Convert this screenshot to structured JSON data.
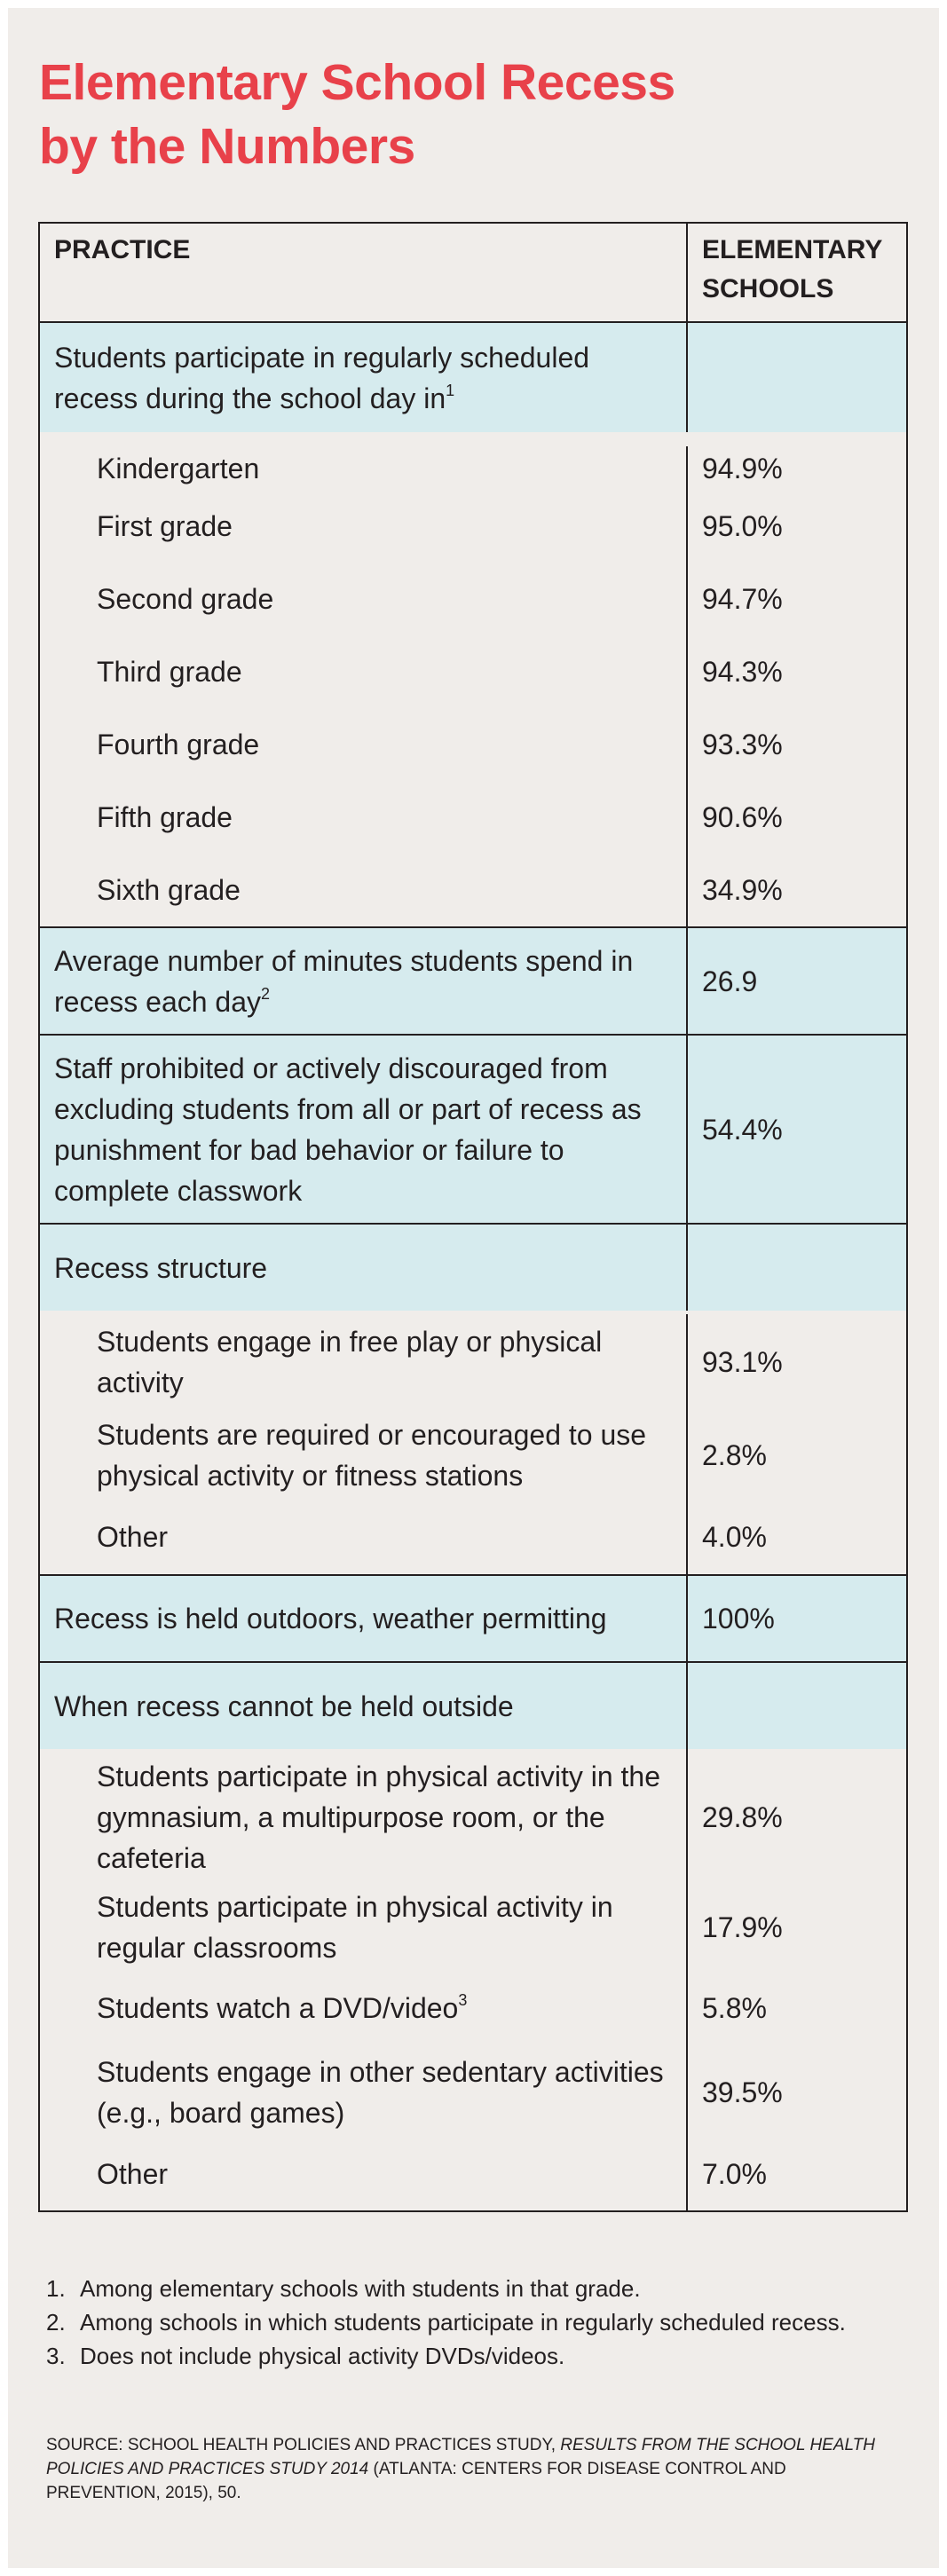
{
  "title": {
    "line1": "Elementary School Recess",
    "line2": "by the Numbers"
  },
  "table": {
    "header": {
      "practice": "PRACTICE",
      "schools_line1": "ELEMENTARY",
      "schools_line2": "SCHOOLS"
    },
    "sections": [
      {
        "label": "Students participate in regularly scheduled recess during the school day in",
        "note": "1",
        "value": "",
        "rows": [
          {
            "label": "Kindergarten",
            "value": "94.9%"
          },
          {
            "label": "First grade",
            "value": "95.0%"
          },
          {
            "label": "Second grade",
            "value": "94.7%"
          },
          {
            "label": "Third grade",
            "value": "94.3%"
          },
          {
            "label": "Fourth grade",
            "value": "93.3%"
          },
          {
            "label": "Fifth grade",
            "value": "90.6%"
          },
          {
            "label": "Sixth grade",
            "value": "34.9%"
          }
        ]
      },
      {
        "label": "Average number of minutes students spend in recess each day",
        "note": "2",
        "value": "26.9",
        "rows": []
      },
      {
        "label": "Staff prohibited or actively discouraged from excluding students from all or part of recess as punishment for bad behavior or failure to complete classwork",
        "note": "",
        "value": "54.4%",
        "rows": []
      },
      {
        "label": "Recess structure",
        "note": "",
        "value": "",
        "rows": [
          {
            "label": "Students engage in free play or physical activity",
            "value": "93.1%"
          },
          {
            "label": "Students are required or encouraged to use physical activity or fitness stations",
            "value": "2.8%"
          },
          {
            "label": "Other",
            "value": "4.0%"
          }
        ]
      },
      {
        "label": "Recess is held outdoors, weather permitting",
        "note": "",
        "value": "100%",
        "rows": []
      },
      {
        "label": "When recess cannot be held outside",
        "note": "",
        "value": "",
        "rows": [
          {
            "label": "Students participate in physical activity in the gymnasium, a multipurpose room, or the cafeteria",
            "value": "29.8%"
          },
          {
            "label": "Students participate in physical activity in regular classrooms",
            "value": "17.9%"
          },
          {
            "label": "Students watch a DVD/video",
            "note": "3",
            "value": "5.8%"
          },
          {
            "label": "Students engage in other sedentary activities (e.g., board games)",
            "value": "39.5%"
          },
          {
            "label": "Other",
            "value": "7.0%"
          }
        ]
      }
    ]
  },
  "footnotes": [
    {
      "num": "1.",
      "text": "Among elementary schools with students in that grade."
    },
    {
      "num": "2.",
      "text": "Among schools in which students participate in regularly scheduled recess."
    },
    {
      "num": "3.",
      "text": "Does not include physical activity DVDs/videos."
    }
  ],
  "source": {
    "prefix": "SOURCE: SCHOOL HEALTH POLICIES AND PRACTICES STUDY, ",
    "italic": "RESULTS FROM THE SCHOOL HEALTH POLICIES AND PRACTICES STUDY 2014",
    "suffix": " (ATLANTA: CENTERS FOR DISEASE CONTROL AND PREVENTION, 2015), 50."
  },
  "colors": {
    "title": "#e8414a",
    "shaded_row": "#d6ebee",
    "background": "#f0edea",
    "rule": "#231f20"
  }
}
